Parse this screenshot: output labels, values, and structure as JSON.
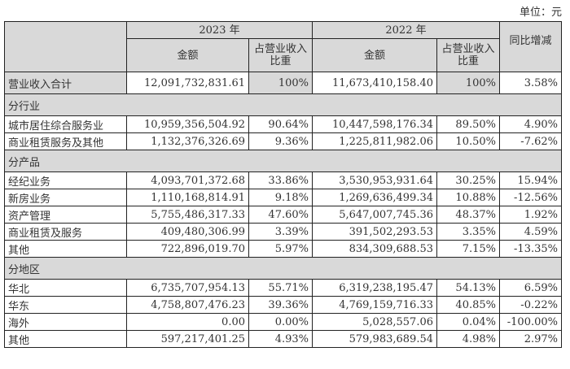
{
  "unit_label": "单位：元",
  "header": {
    "year1": "2023 年",
    "year2": "2022 年",
    "amount": "金额",
    "share": "占营业收入比重",
    "yoy": "同比增减"
  },
  "total": {
    "label": "营业收入合计",
    "amt2023": "12,091,732,831.61",
    "pct2023": "100%",
    "amt2022": "11,673,410,158.40",
    "pct2022": "100%",
    "yoy": "3.58%"
  },
  "sections": [
    {
      "title": "分行业",
      "rows": [
        {
          "label": "城市居住综合服务业",
          "amt2023": "10,959,356,504.92",
          "pct2023": "90.64%",
          "amt2022": "10,447,598,176.34",
          "pct2022": "89.50%",
          "yoy": "4.90%"
        },
        {
          "label": "商业租赁服务及其他",
          "amt2023": "1,132,376,326.69",
          "pct2023": "9.36%",
          "amt2022": "1,225,811,982.06",
          "pct2022": "10.50%",
          "yoy": "-7.62%"
        }
      ]
    },
    {
      "title": "分产品",
      "rows": [
        {
          "label": "经纪业务",
          "amt2023": "4,093,701,372.68",
          "pct2023": "33.86%",
          "amt2022": "3,530,953,931.64",
          "pct2022": "30.25%",
          "yoy": "15.94%"
        },
        {
          "label": "新房业务",
          "amt2023": "1,110,168,814.91",
          "pct2023": "9.18%",
          "amt2022": "1,269,636,499.34",
          "pct2022": "10.88%",
          "yoy": "-12.56%"
        },
        {
          "label": "资产管理",
          "amt2023": "5,755,486,317.33",
          "pct2023": "47.60%",
          "amt2022": "5,647,007,745.36",
          "pct2022": "48.37%",
          "yoy": "1.92%"
        },
        {
          "label": "商业租赁及服务",
          "amt2023": "409,480,306.99",
          "pct2023": "3.39%",
          "amt2022": "391,502,293.53",
          "pct2022": "3.35%",
          "yoy": "4.59%"
        },
        {
          "label": "其他",
          "amt2023": "722,896,019.70",
          "pct2023": "5.97%",
          "amt2022": "834,309,688.53",
          "pct2022": "7.15%",
          "yoy": "-13.35%"
        }
      ]
    },
    {
      "title": "分地区",
      "rows": [
        {
          "label": "华北",
          "amt2023": "6,735,707,954.13",
          "pct2023": "55.71%",
          "amt2022": "6,319,238,195.47",
          "pct2022": "54.13%",
          "yoy": "6.59%"
        },
        {
          "label": "华东",
          "amt2023": "4,758,807,476.23",
          "pct2023": "39.36%",
          "amt2022": "4,769,159,716.33",
          "pct2022": "40.85%",
          "yoy": "-0.22%"
        },
        {
          "label": "海外",
          "amt2023": "0.00",
          "pct2023": "0.00%",
          "amt2022": "5,028,557.06",
          "pct2022": "0.04%",
          "yoy": "-100.00%"
        },
        {
          "label": "其他",
          "amt2023": "597,217,401.25",
          "pct2023": "4.93%",
          "amt2022": "579,983,689.54",
          "pct2022": "4.98%",
          "yoy": "2.97%"
        }
      ]
    }
  ]
}
